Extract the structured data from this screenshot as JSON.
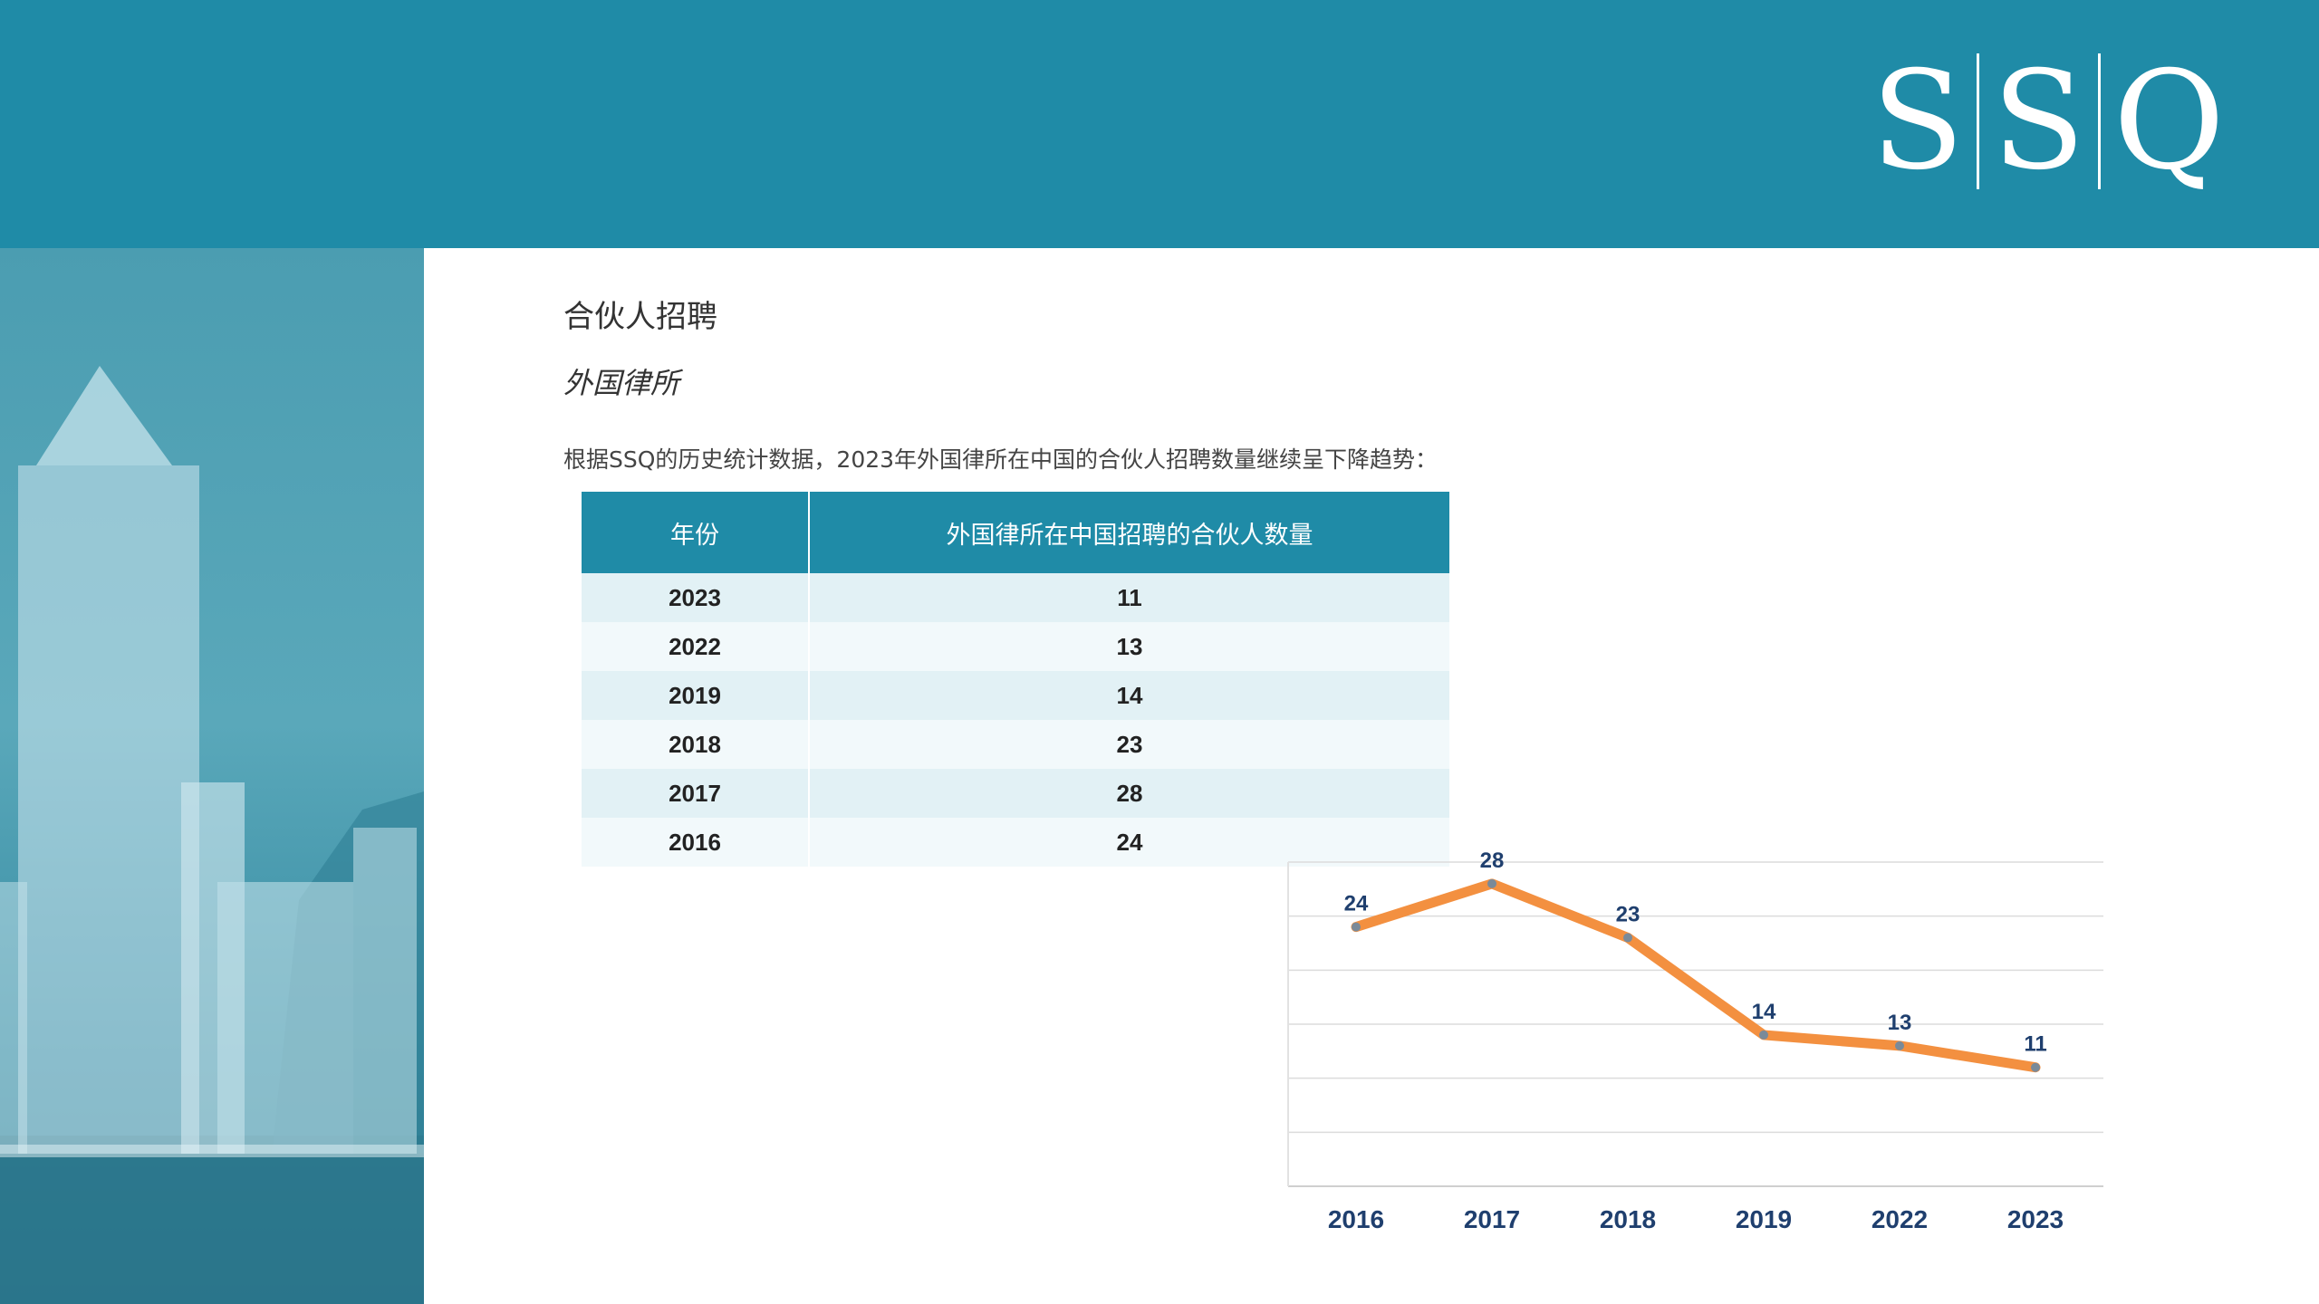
{
  "header": {
    "logo_letters": [
      "S",
      "S",
      "Q"
    ]
  },
  "main": {
    "title": "合伙人招聘",
    "subtitle": "外国律所",
    "intro": "根据SSQ的历史统计数据，2023年外国律所在中国的合伙人招聘数量继续呈下降趋势："
  },
  "table": {
    "headers": [
      "年份",
      "外国律所在中国招聘的合伙人数量"
    ],
    "rows": [
      [
        "2023",
        "11"
      ],
      [
        "2022",
        "13"
      ],
      [
        "2019",
        "14"
      ],
      [
        "2018",
        "23"
      ],
      [
        "2017",
        "28"
      ],
      [
        "2016",
        "24"
      ]
    ]
  },
  "chart_data": {
    "type": "line",
    "categories": [
      "2016",
      "2017",
      "2018",
      "2019",
      "2022",
      "2023"
    ],
    "values": [
      24,
      28,
      23,
      14,
      13,
      11
    ],
    "ylim": [
      0,
      30
    ],
    "grid": true,
    "line_color": "#f39040",
    "label_color": "#1f3f6e"
  },
  "colors": {
    "brand": "#1f8ba7",
    "row_odd": "#e2f1f5",
    "row_even": "#f2f9fb"
  }
}
